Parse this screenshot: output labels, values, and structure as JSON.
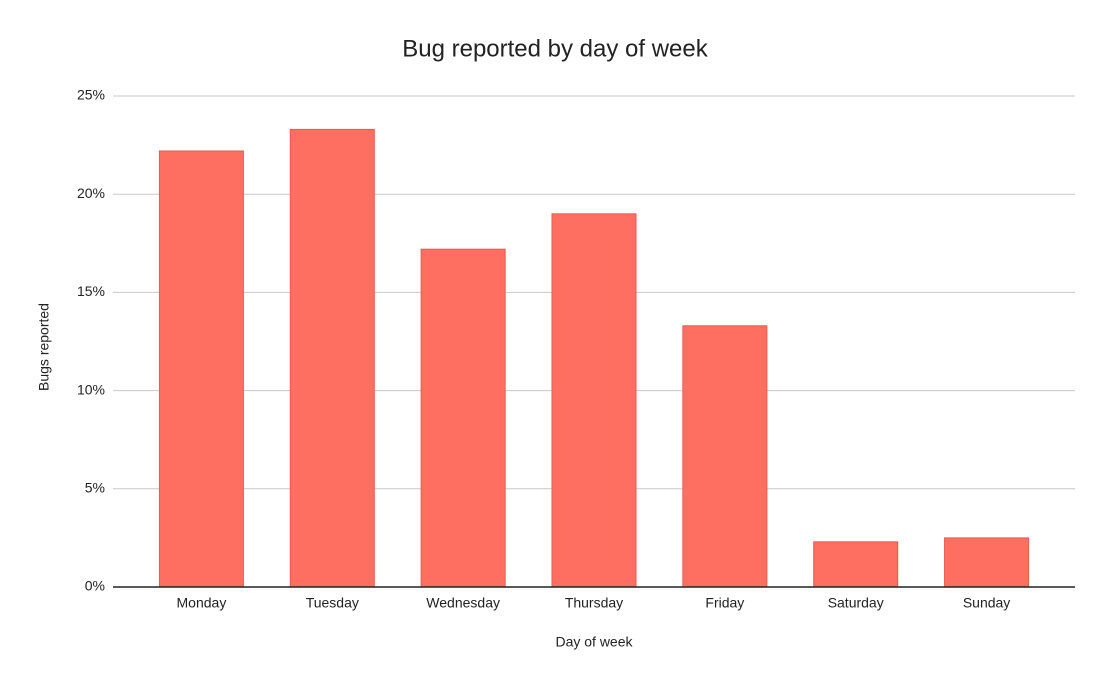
{
  "chart_data": {
    "type": "bar",
    "title": "Bug reported by day of week",
    "x_label": "Day of week",
    "y_label": "Bugs reported",
    "categories": [
      "Monday",
      "Tuesday",
      "Wednesday",
      "Thursday",
      "Friday",
      "Saturday",
      "Sunday"
    ],
    "values": [
      22.2,
      23.3,
      17.2,
      19.0,
      13.3,
      2.3,
      2.5
    ],
    "color": "#ff6f61",
    "ylim": [
      0,
      25
    ],
    "yticks": [
      {
        "value": 0,
        "label": "0%"
      },
      {
        "value": 5,
        "label": "5%"
      },
      {
        "value": 10,
        "label": "10%"
      },
      {
        "value": 15,
        "label": "15%"
      },
      {
        "value": 20,
        "label": "20%"
      },
      {
        "value": 25,
        "label": "25%"
      }
    ],
    "grid": true
  }
}
